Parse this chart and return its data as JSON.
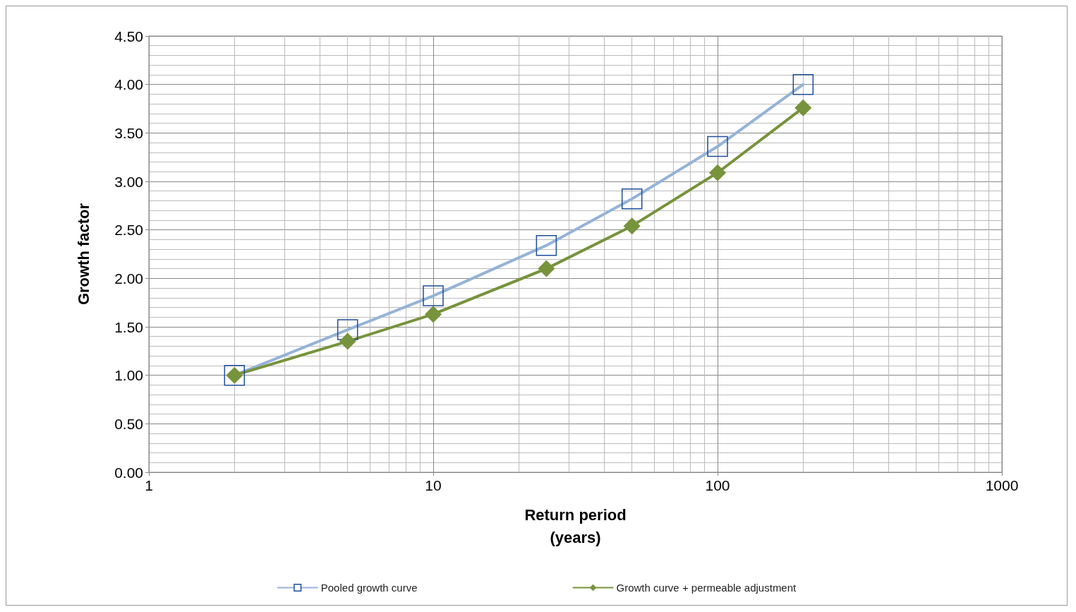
{
  "chart_data": {
    "type": "line",
    "xlabel": "Return period\n(years)",
    "ylabel": "Growth factor",
    "log": "x",
    "x": [
      2,
      5,
      10,
      25,
      50,
      100,
      200
    ],
    "series": [
      {
        "name": "Pooled growth curve",
        "color": "#95b3d7",
        "marker": "square",
        "values": [
          1.0,
          1.47,
          1.82,
          2.34,
          2.82,
          3.36,
          4.0
        ]
      },
      {
        "name": "Growth curve + permeable adjustment",
        "color": "#77933c",
        "marker": "diamond",
        "values": [
          1.0,
          1.35,
          1.63,
          2.1,
          2.54,
          3.09,
          3.76
        ]
      }
    ],
    "xlim": [
      1,
      1000
    ],
    "xticks": [
      1,
      10,
      100,
      1000
    ],
    "ylim": [
      0,
      4.5
    ],
    "yticks": [
      {
        "value": 0,
        "label": "0.00"
      },
      {
        "value": 0.5,
        "label": "0.50"
      },
      {
        "value": 1,
        "label": "1.00"
      },
      {
        "value": 1.5,
        "label": "1.50"
      },
      {
        "value": 2,
        "label": "2.00"
      },
      {
        "value": 2.5,
        "label": "2.50"
      },
      {
        "value": 3,
        "label": "3.00"
      },
      {
        "value": 3.5,
        "label": "3.50"
      },
      {
        "value": 4,
        "label": "4.00"
      },
      {
        "value": 4.5,
        "label": "4.50"
      }
    ],
    "grid": true,
    "legend": "bottom",
    "line_style": "solid"
  }
}
